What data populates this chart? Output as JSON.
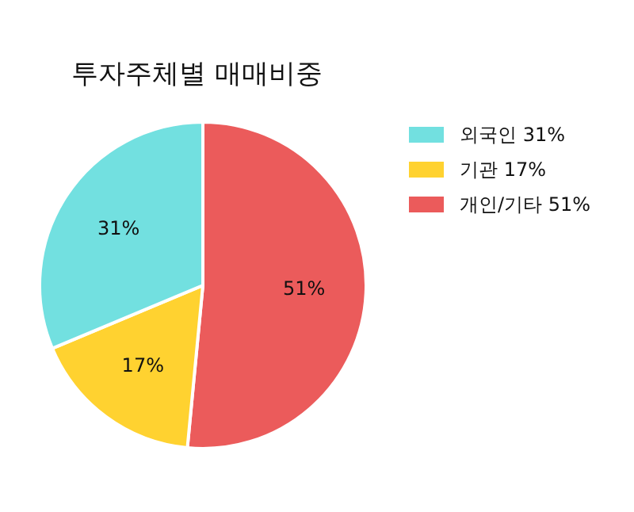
{
  "chart_data": {
    "type": "pie",
    "title": "투자주체별 매매비중",
    "categories": [
      "외국인",
      "기관",
      "개인/기타"
    ],
    "values": [
      31,
      17,
      51
    ],
    "value_labels": [
      "31%",
      "17%",
      "51%"
    ],
    "colors": [
      "#72e0e0",
      "#ffd230",
      "#eb5b5b"
    ],
    "legend": "top right"
  }
}
